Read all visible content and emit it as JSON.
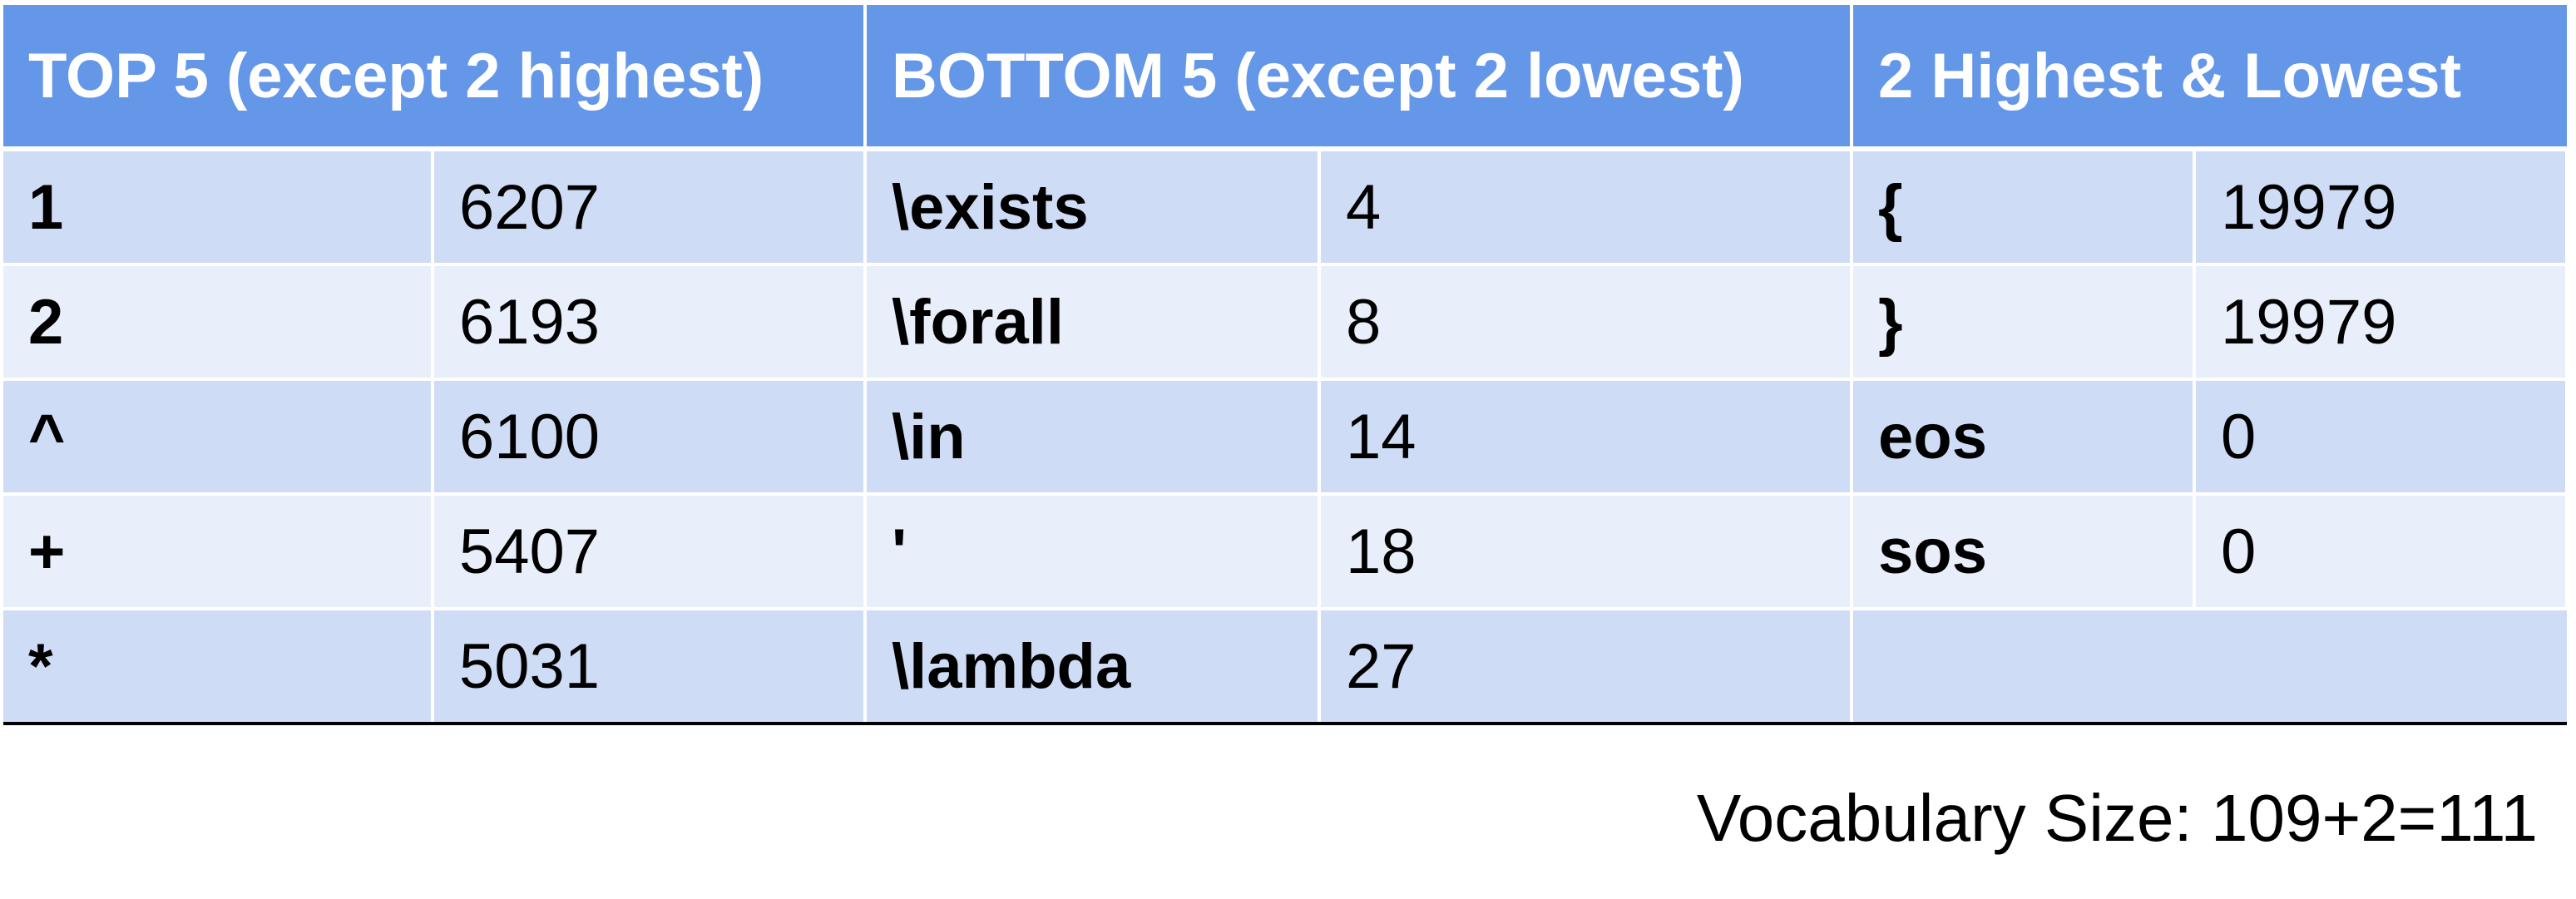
{
  "headers": [
    "TOP 5 (except 2 highest)",
    "BOTTOM 5 (except 2 lowest)",
    "2 Highest & Lowest"
  ],
  "rows": [
    [
      "1",
      "6207",
      "\\exists",
      "4",
      "{",
      "19979"
    ],
    [
      "2",
      "6193",
      "\\forall",
      "8",
      "}",
      "19979"
    ],
    [
      "^",
      "6100",
      "\\in",
      "14",
      "eos",
      "0"
    ],
    [
      "+",
      "5407",
      "'",
      "18",
      "sos",
      "0"
    ],
    [
      "*",
      "5031",
      "\\lambda",
      "27",
      "",
      ""
    ]
  ],
  "footer": "Vocabulary Size: 109+2=111",
  "colors": {
    "header_bg": "#6497e8",
    "row_dark": "#cfdcf5",
    "row_light": "#e8eefa"
  }
}
